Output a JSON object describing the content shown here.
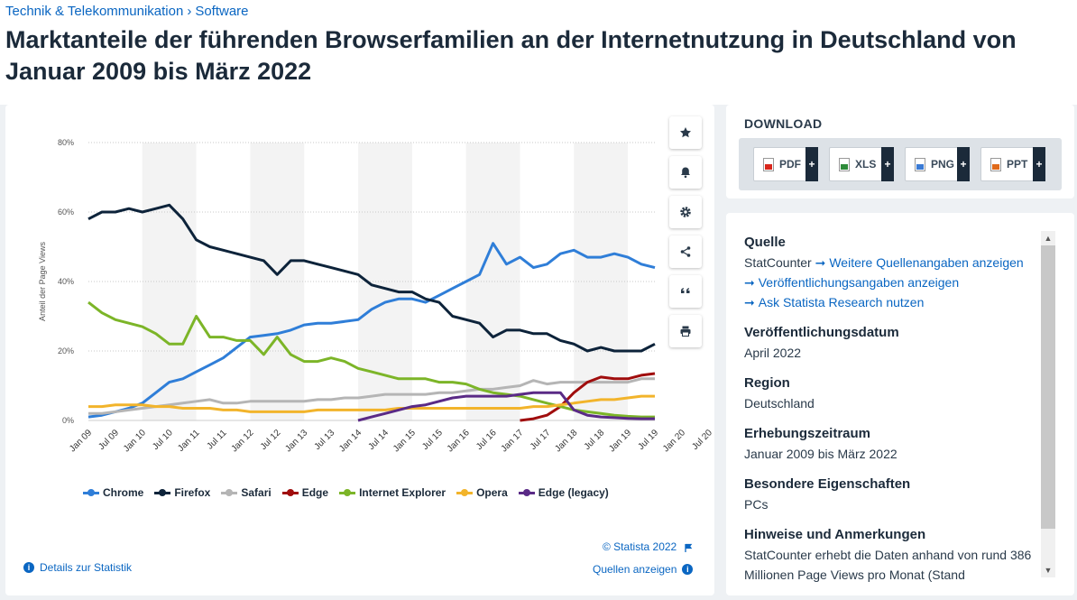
{
  "breadcrumb": {
    "category": "Technik & Telekommunikation",
    "separator": "›",
    "subcategory": "Software"
  },
  "page_title": "Marktanteile der führenden Browserfamilien an der Internetnutzung in Deutschland von Januar 2009 bis März 2022",
  "tools": [
    "star-icon",
    "bell-icon",
    "gear-icon",
    "share-icon",
    "quote-icon",
    "print-icon"
  ],
  "chart_links": {
    "copyright": "© Statista 2022",
    "details": "Details zur Statistik",
    "sources": "Quellen anzeigen"
  },
  "download": {
    "title": "DOWNLOAD",
    "buttons": [
      {
        "label": "PDF",
        "color": "#d9261c"
      },
      {
        "label": "XLS",
        "color": "#2e8b3a"
      },
      {
        "label": "PNG",
        "color": "#3a7bd5"
      },
      {
        "label": "PPT",
        "color": "#e06a1b"
      }
    ],
    "plus": "+"
  },
  "info": {
    "source_heading": "Quelle",
    "source_value": "StatCounter",
    "source_link1": "Weitere Quellenangaben anzeigen",
    "source_link2": "Veröffentlichungsangaben anzeigen",
    "source_link3": "Ask Statista Research nutzen",
    "pubdate_heading": "Veröffentlichungsdatum",
    "pubdate_value": "April 2022",
    "region_heading": "Region",
    "region_value": "Deutschland",
    "period_heading": "Erhebungszeitraum",
    "period_value": "Januar 2009 bis März 2022",
    "props_heading": "Besondere Eigenschaften",
    "props_value": "PCs",
    "notes_heading": "Hinweise und Anmerkungen",
    "notes_value": "StatCounter erhebt die Daten anhand von rund 386 Millionen Page Views pro Monat (Stand"
  },
  "chart_data": {
    "type": "line",
    "title": "",
    "xlabel": "",
    "ylabel": "Anteil der Page Views",
    "ylim": [
      0,
      80
    ],
    "yticks": [
      "0%",
      "20%",
      "40%",
      "60%",
      "80%"
    ],
    "grid": true,
    "legend_position": "bottom",
    "x_start": "2009-01",
    "x_end": "2022-03",
    "x_step": "quarterly",
    "xtick_labels": [
      "Jan 09",
      "Jul 09",
      "Jan 10",
      "Jul 10",
      "Jan 11",
      "Jul 11",
      "Jan 12",
      "Jul 12",
      "Jan 13",
      "Jul 13",
      "Jan 14",
      "Jul 14",
      "Jan 15",
      "Jul 15",
      "Jan 16",
      "Jul 16",
      "Jan 17",
      "Jul 17",
      "Jan 18",
      "Jul 18",
      "Jan 19",
      "Jul 19",
      "Jan 20",
      "Jul 20",
      "Jan 21",
      "Jul 21",
      "Jan 22"
    ],
    "series": [
      {
        "name": "Chrome",
        "color": "#2f7ed8",
        "values": [
          1,
          1.5,
          2.5,
          3.5,
          5,
          8,
          11,
          12,
          14,
          16,
          18,
          21,
          24,
          24.5,
          25,
          26,
          27.5,
          28,
          28,
          28.5,
          29,
          32,
          34,
          35,
          35,
          34,
          36,
          38,
          40,
          42,
          51,
          45,
          47,
          44,
          45,
          48,
          49,
          47,
          47,
          48,
          47,
          45,
          44
        ]
      },
      {
        "name": "Firefox",
        "color": "#0d233a",
        "values": [
          58,
          60,
          60,
          61,
          60,
          61,
          62,
          58,
          52,
          50,
          49,
          48,
          47,
          46,
          42,
          46,
          46,
          45,
          44,
          43,
          42,
          39,
          38,
          37,
          37,
          35,
          34,
          30,
          29,
          28,
          24,
          26,
          26,
          25,
          25,
          23,
          22,
          20,
          21,
          20,
          20,
          20,
          22
        ]
      },
      {
        "name": "Safari",
        "color": "#b5b5b5",
        "values": [
          2,
          2,
          2.5,
          3,
          3.5,
          4,
          4.5,
          5,
          5.5,
          6,
          5,
          5,
          5.5,
          5.5,
          5.5,
          5.5,
          5.5,
          6,
          6,
          6.5,
          6.5,
          7,
          7.5,
          7.5,
          7.5,
          7.5,
          8,
          8,
          8.5,
          9,
          9,
          9.5,
          10,
          11.5,
          10.5,
          11,
          11,
          11,
          11,
          11,
          11,
          12,
          12
        ]
      },
      {
        "name": "Edge",
        "color": "#a00d0d",
        "values": [
          0,
          0,
          0,
          0,
          0,
          0,
          0,
          0,
          0,
          0,
          0,
          0,
          0,
          0,
          0,
          0,
          0,
          0,
          0,
          0,
          0,
          0,
          0,
          0,
          0,
          0,
          0,
          0,
          0,
          0,
          0,
          0,
          0,
          0.5,
          1.5,
          4,
          8,
          11,
          12.5,
          12,
          12,
          13,
          13.5
        ]
      },
      {
        "name": "Internet Explorer",
        "color": "#7cb528",
        "values": [
          34,
          31,
          29,
          28,
          27,
          25,
          22,
          22,
          30,
          24,
          24,
          23,
          23,
          19,
          24,
          19,
          17,
          17,
          18,
          17,
          15,
          14,
          13,
          12,
          12,
          12,
          11,
          11,
          10.5,
          9,
          8,
          7.5,
          7,
          6,
          5,
          4,
          3,
          2.5,
          2,
          1.5,
          1.2,
          1,
          1
        ]
      },
      {
        "name": "Opera",
        "color": "#f2b42b",
        "values": [
          4,
          4,
          4.5,
          4.5,
          4.5,
          4,
          4,
          3.5,
          3.5,
          3.5,
          3,
          3,
          2.5,
          2.5,
          2.5,
          2.5,
          2.5,
          3,
          3,
          3,
          3,
          3,
          3,
          3.5,
          3.5,
          3.5,
          3.5,
          3.5,
          3.5,
          3.5,
          3.5,
          3.5,
          3.5,
          4,
          4,
          4.5,
          5,
          5.5,
          6,
          6,
          6.5,
          7,
          7
        ]
      },
      {
        "name": "Edge (legacy)",
        "color": "#5a2a86",
        "values": [
          0,
          0,
          0,
          0,
          0,
          0,
          0,
          0,
          0,
          0,
          0,
          0,
          0,
          0,
          0,
          0,
          0,
          0,
          0,
          0,
          0,
          1,
          2,
          3,
          4,
          4.5,
          5.5,
          6.5,
          7,
          7,
          7,
          7,
          7.5,
          8,
          8,
          8,
          3,
          1.5,
          1,
          0.8,
          0.6,
          0.5,
          0.5
        ]
      }
    ]
  }
}
